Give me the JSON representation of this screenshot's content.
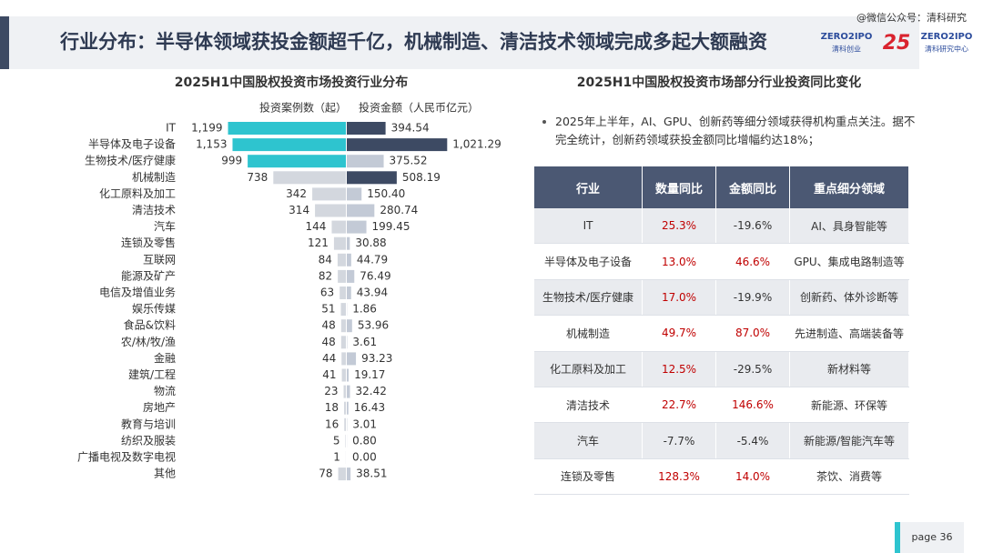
{
  "header": {
    "title": "行业分布：半导体领域获投金额超千亿，机械制造、清洁技术领域完成多起大额融资",
    "watermark": "@微信公众号：清科研究"
  },
  "logos": {
    "venture_brand": "ZERO2IPO",
    "venture_name": "清科创业",
    "anniversary": "25",
    "research_brand": "ZERO2IPO",
    "research_name": "清科研究中心"
  },
  "chart_data": {
    "type": "butterfly",
    "title": "2025H1中国股权投资市场投资行业分布",
    "categories": [
      "IT",
      "半导体及电子设备",
      "生物技术/医疗健康",
      "机械制造",
      "化工原料及加工",
      "清洁技术",
      "汽车",
      "连锁及零售",
      "互联网",
      "能源及矿产",
      "电信及增值业务",
      "娱乐传媒",
      "食品&饮料",
      "农/林/牧/渔",
      "金融",
      "建筑/工程",
      "物流",
      "房地产",
      "教育与培训",
      "纺织及服装",
      "广播电视及数字电视",
      "其他"
    ],
    "series": [
      {
        "name": "投资案例数（起）",
        "colors": [
          "#2ec4cf",
          "#2ec4cf",
          "#2ec4cf",
          "#d3d7de",
          "#d3d7de",
          "#d3d7de",
          "#d3d7de",
          "#d3d7de",
          "#d3d7de",
          "#d3d7de",
          "#d3d7de",
          "#d3d7de",
          "#d3d7de",
          "#d3d7de",
          "#d3d7de",
          "#d3d7de",
          "#d3d7de",
          "#d3d7de",
          "#d3d7de",
          "#d3d7de",
          "#d3d7de",
          "#d3d7de"
        ],
        "values": [
          1199,
          1153,
          999,
          738,
          342,
          314,
          144,
          121,
          84,
          82,
          63,
          51,
          48,
          48,
          44,
          41,
          23,
          18,
          16,
          5,
          1,
          78
        ],
        "value_labels": [
          "1,199",
          "1,153",
          "999",
          "738",
          "342",
          "314",
          "144",
          "121",
          "84",
          "82",
          "63",
          "51",
          "48",
          "48",
          "44",
          "41",
          "23",
          "18",
          "16",
          "5",
          "1",
          "78"
        ]
      },
      {
        "name": "投资金额（人民币亿元）",
        "colors": [
          "#3d4a63",
          "#3d4a63",
          "#c3cad6",
          "#3d4a63",
          "#c3cad6",
          "#c3cad6",
          "#c3cad6",
          "#c3cad6",
          "#c3cad6",
          "#c3cad6",
          "#c3cad6",
          "#c3cad6",
          "#c3cad6",
          "#c3cad6",
          "#c3cad6",
          "#c3cad6",
          "#c3cad6",
          "#c3cad6",
          "#c3cad6",
          "#c3cad6",
          "#c3cad6",
          "#c3cad6"
        ],
        "values": [
          394.54,
          1021.29,
          375.52,
          508.19,
          150.4,
          280.74,
          199.45,
          30.88,
          44.79,
          76.49,
          43.94,
          1.86,
          53.96,
          3.61,
          93.23,
          19.17,
          32.42,
          16.43,
          3.01,
          0.8,
          0.0,
          38.51
        ],
        "value_labels": [
          "394.54",
          "1,021.29",
          "375.52",
          "508.19",
          "150.40",
          "280.74",
          "199.45",
          "30.88",
          "44.79",
          "76.49",
          "43.94",
          "1.86",
          "53.96",
          "3.61",
          "93.23",
          "19.17",
          "32.42",
          "16.43",
          "3.01",
          "0.80",
          "0.00",
          "38.51"
        ]
      }
    ]
  },
  "right_title": "2025H1中国股权投资市场部分行业投资同比变化",
  "bullet": "2025年上半年，AI、GPU、创新药等细分领域获得机构重点关注。据不完全统计，创新药领域获投金额同比增幅约达18%；",
  "table": {
    "header": [
      "行业",
      "数量同比",
      "金额同比",
      "重点细分领域"
    ],
    "rows": [
      [
        "IT",
        "25.3%",
        "-19.6%",
        "AI、具身智能等"
      ],
      [
        "半导体及电子设备",
        "13.0%",
        "46.6%",
        "GPU、集成电路制造等"
      ],
      [
        "生物技术/医疗健康",
        "17.0%",
        "-19.9%",
        "创新药、体外诊断等"
      ],
      [
        "机械制造",
        "49.7%",
        "87.0%",
        "先进制造、高端装备等"
      ],
      [
        "化工原料及加工",
        "12.5%",
        "-29.5%",
        "新材料等"
      ],
      [
        "清洁技术",
        "22.7%",
        "146.6%",
        "新能源、环保等"
      ],
      [
        "汽车",
        "-7.7%",
        "-5.4%",
        "新能源/智能汽车等"
      ],
      [
        "连锁及零售",
        "128.3%",
        "14.0%",
        "茶饮、消费等"
      ]
    ]
  },
  "page": "page  36"
}
